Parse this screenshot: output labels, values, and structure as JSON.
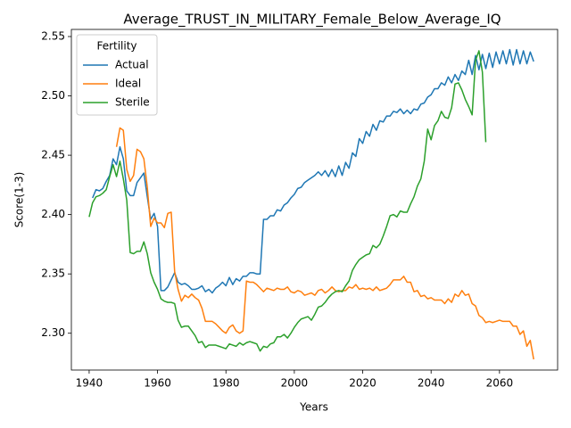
{
  "chart_data": {
    "type": "line",
    "title": "Average_TRUST_IN_MILITARY_Female_Below_Average_IQ",
    "x_label": "Years",
    "y_label": "Score(1-3)",
    "legend_title": "Fertility",
    "legend": "upper left",
    "grid": false,
    "xlim": [
      1934.8,
      2077
    ],
    "ylim": [
      2.269,
      2.556
    ],
    "xticks": [
      1940,
      1960,
      1980,
      2000,
      2020,
      2040,
      2060
    ],
    "yticks": [
      {
        "value": 2.3,
        "label": "2.30"
      },
      2.35,
      {
        "value": 2.4,
        "label": "2.40"
      },
      2.45,
      {
        "value": 2.5,
        "label": "2.50"
      },
      2.55
    ],
    "x": [
      1940,
      1941,
      1942,
      1943,
      1944,
      1945,
      1946,
      1947,
      1948,
      1949,
      1950,
      1951,
      1952,
      1953,
      1954,
      1955,
      1956,
      1957,
      1958,
      1959,
      1960,
      1961,
      1962,
      1963,
      1964,
      1965,
      1966,
      1967,
      1968,
      1969,
      1970,
      1971,
      1972,
      1973,
      1974,
      1975,
      1976,
      1977,
      1978,
      1979,
      1980,
      1981,
      1982,
      1983,
      1984,
      1985,
      1986,
      1987,
      1988,
      1989,
      1990,
      1991,
      1992,
      1993,
      1994,
      1995,
      1996,
      1997,
      1998,
      1999,
      2000,
      2001,
      2002,
      2003,
      2004,
      2005,
      2006,
      2007,
      2008,
      2009,
      2010,
      2011,
      2012,
      2013,
      2014,
      2015,
      2016,
      2017,
      2018,
      2019,
      2020,
      2021,
      2022,
      2023,
      2024,
      2025,
      2026,
      2027,
      2028,
      2029,
      2030,
      2031,
      2032,
      2033,
      2034,
      2035,
      2036,
      2037,
      2038,
      2039,
      2040,
      2041,
      2042,
      2043,
      2044,
      2045,
      2046,
      2047,
      2048,
      2049,
      2050,
      2051,
      2052,
      2053,
      2054,
      2055,
      2056,
      2057,
      2058,
      2059,
      2060,
      2061,
      2062,
      2063,
      2064,
      2065,
      2066,
      2067,
      2068,
      2069,
      2070
    ],
    "series": [
      {
        "name": "Actual",
        "color": "#1f77b4",
        "values": [
          null,
          2.414,
          2.421,
          2.42,
          2.422,
          2.428,
          2.433,
          2.447,
          2.442,
          2.457,
          2.447,
          2.42,
          2.416,
          2.416,
          2.427,
          2.431,
          2.435,
          2.415,
          2.396,
          2.401,
          2.39,
          2.336,
          2.336,
          2.339,
          2.345,
          2.351,
          2.343,
          2.341,
          2.342,
          2.34,
          2.337,
          2.337,
          2.338,
          2.34,
          2.335,
          2.337,
          2.334,
          2.338,
          2.34,
          2.343,
          2.34,
          2.347,
          2.341,
          2.346,
          2.344,
          2.348,
          2.348,
          2.351,
          2.351,
          2.35,
          2.35,
          2.396,
          2.396,
          2.399,
          2.399,
          2.404,
          2.403,
          2.408,
          2.41,
          2.414,
          2.417,
          2.422,
          2.423,
          2.427,
          2.429,
          2.431,
          2.433,
          2.436,
          2.433,
          2.437,
          2.432,
          2.438,
          2.432,
          2.441,
          2.433,
          2.444,
          2.439,
          2.452,
          2.449,
          2.464,
          2.46,
          2.47,
          2.466,
          2.476,
          2.471,
          2.479,
          2.478,
          2.483,
          2.483,
          2.487,
          2.486,
          2.489,
          2.485,
          2.488,
          2.485,
          2.489,
          2.488,
          2.493,
          2.494,
          2.499,
          2.501,
          2.506,
          2.506,
          2.511,
          2.509,
          2.516,
          2.511,
          2.518,
          2.513,
          2.521,
          2.518,
          2.53,
          2.518,
          2.534,
          2.522,
          2.535,
          2.523,
          2.536,
          2.524,
          2.537,
          2.527,
          2.538,
          2.527,
          2.539,
          2.526,
          2.539,
          2.527,
          2.538,
          2.527,
          2.537,
          2.529
        ]
      },
      {
        "name": "Ideal",
        "color": "#ff7f0e",
        "values": [
          null,
          null,
          null,
          null,
          null,
          null,
          null,
          null,
          2.457,
          2.473,
          2.471,
          2.438,
          2.428,
          2.433,
          2.455,
          2.453,
          2.447,
          2.423,
          2.39,
          2.397,
          2.393,
          2.393,
          2.389,
          2.401,
          2.402,
          2.352,
          2.337,
          2.327,
          2.332,
          2.33,
          2.333,
          2.33,
          2.328,
          2.321,
          2.31,
          2.31,
          2.31,
          2.308,
          2.305,
          2.302,
          2.3,
          2.305,
          2.307,
          2.302,
          2.3,
          2.302,
          2.344,
          2.343,
          2.343,
          2.341,
          2.338,
          2.335,
          2.338,
          2.337,
          2.336,
          2.338,
          2.337,
          2.337,
          2.339,
          2.335,
          2.334,
          2.336,
          2.335,
          2.332,
          2.333,
          2.334,
          2.332,
          2.336,
          2.337,
          2.334,
          2.336,
          2.339,
          2.336,
          2.335,
          2.336,
          2.336,
          2.339,
          2.338,
          2.341,
          2.337,
          2.338,
          2.337,
          2.338,
          2.336,
          2.339,
          2.336,
          2.337,
          2.338,
          2.341,
          2.345,
          2.345,
          2.345,
          2.348,
          2.343,
          2.343,
          2.335,
          2.336,
          2.331,
          2.332,
          2.329,
          2.33,
          2.328,
          2.328,
          2.328,
          2.325,
          2.329,
          2.326,
          2.333,
          2.331,
          2.336,
          2.332,
          2.333,
          2.325,
          2.323,
          2.315,
          2.313,
          2.309,
          2.31,
          2.309,
          2.31,
          2.311,
          2.31,
          2.31,
          2.31,
          2.306,
          2.306,
          2.299,
          2.302,
          2.289,
          2.294,
          2.278
        ]
      },
      {
        "name": "Sterile",
        "color": "#2ca02c",
        "values": [
          2.398,
          2.41,
          2.415,
          2.416,
          2.418,
          2.421,
          2.432,
          2.442,
          2.432,
          2.445,
          2.43,
          2.412,
          2.368,
          2.367,
          2.369,
          2.369,
          2.377,
          2.367,
          2.351,
          2.343,
          2.337,
          2.329,
          2.327,
          2.326,
          2.326,
          2.325,
          2.311,
          2.305,
          2.306,
          2.306,
          2.302,
          2.298,
          2.292,
          2.293,
          2.288,
          2.29,
          2.29,
          2.29,
          2.289,
          2.288,
          2.287,
          2.291,
          2.29,
          2.289,
          2.292,
          2.29,
          2.292,
          2.293,
          2.292,
          2.291,
          2.285,
          2.289,
          2.288,
          2.291,
          2.292,
          2.297,
          2.297,
          2.299,
          2.296,
          2.3,
          2.305,
          2.309,
          2.312,
          2.313,
          2.314,
          2.311,
          2.316,
          2.322,
          2.323,
          2.326,
          2.33,
          2.333,
          2.335,
          2.336,
          2.335,
          2.34,
          2.344,
          2.353,
          2.358,
          2.362,
          2.364,
          2.366,
          2.367,
          2.374,
          2.372,
          2.375,
          2.382,
          2.39,
          2.399,
          2.4,
          2.398,
          2.403,
          2.402,
          2.402,
          2.409,
          2.415,
          2.424,
          2.43,
          2.445,
          2.472,
          2.463,
          2.475,
          2.479,
          2.487,
          2.482,
          2.481,
          2.49,
          2.51,
          2.511,
          2.505,
          2.497,
          2.491,
          2.484,
          2.53,
          2.538,
          2.52,
          2.461,
          null,
          null,
          null,
          null,
          null,
          null,
          null,
          null,
          null,
          null,
          null,
          null,
          null,
          null
        ]
      }
    ]
  }
}
